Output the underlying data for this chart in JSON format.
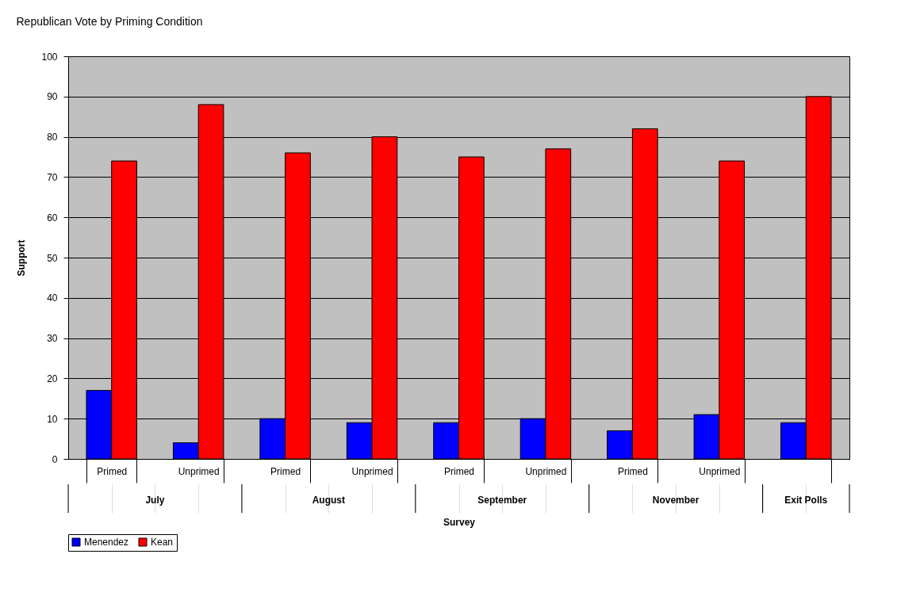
{
  "chart_data": {
    "type": "bar",
    "title": "Republican Vote by Priming Condition",
    "xlabel": "Survey",
    "ylabel": "Support",
    "categories": [
      "Primed",
      "Unprimed",
      "Primed",
      "Unprimed",
      "Primed",
      "Unprimed",
      "Primed",
      "Unprimed",
      null
    ],
    "annotations": [
      "July",
      "August",
      "September",
      "November",
      "Exit Polls"
    ],
    "series": [
      {
        "name": "Menendez",
        "color": "#0000ff",
        "values": [
          17,
          4,
          10,
          9,
          9,
          10,
          7,
          11,
          9
        ]
      },
      {
        "name": "Kean",
        "color": "#ff0000",
        "values": [
          74,
          88,
          76,
          80,
          75,
          77,
          82,
          74,
          90
        ]
      }
    ],
    "ylim": [
      0,
      100
    ],
    "yticks": [
      0,
      10,
      20,
      30,
      40,
      50,
      60,
      70,
      80,
      90,
      100
    ],
    "grid": "y",
    "legend": "bottom"
  }
}
